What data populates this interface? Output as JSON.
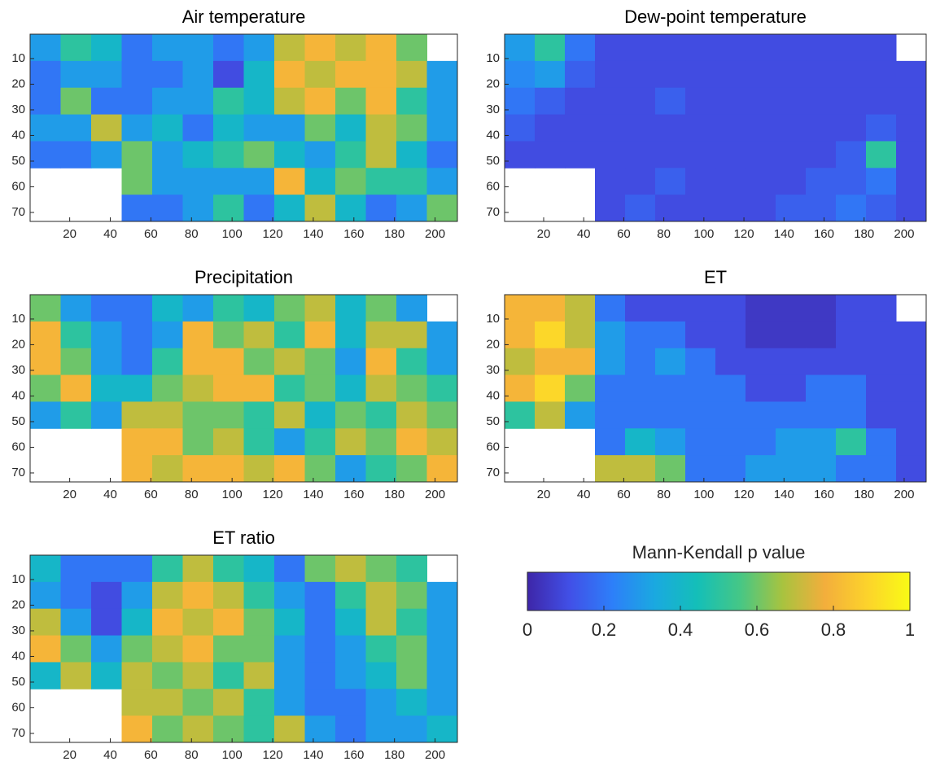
{
  "chart_data": [
    {
      "type": "heatmap",
      "title": "Air temperature",
      "xlim": [
        0.5,
        211
      ],
      "ylim": [
        0.5,
        73.5
      ],
      "y_reversed": true,
      "xticks": [
        20,
        40,
        60,
        80,
        100,
        120,
        140,
        160,
        180,
        200
      ],
      "yticks": [
        10,
        20,
        30,
        40,
        50,
        60,
        70
      ],
      "z": [
        [
          0.3,
          0.5,
          0.4,
          0.2,
          0.3,
          0.3,
          0.2,
          0.3,
          0.7,
          0.8,
          0.7,
          0.8,
          0.6,
          null
        ],
        [
          0.2,
          0.3,
          0.3,
          0.2,
          0.2,
          0.3,
          0.1,
          0.4,
          0.8,
          0.7,
          0.8,
          0.8,
          0.7,
          0.3
        ],
        [
          0.2,
          0.6,
          0.2,
          0.2,
          0.3,
          0.3,
          0.5,
          0.4,
          0.7,
          0.8,
          0.6,
          0.8,
          0.5,
          0.3
        ],
        [
          0.3,
          0.3,
          0.7,
          0.3,
          0.4,
          0.2,
          0.4,
          0.3,
          0.3,
          0.6,
          0.4,
          0.7,
          0.6,
          0.3
        ],
        [
          0.2,
          0.2,
          0.3,
          0.6,
          0.3,
          0.4,
          0.5,
          0.6,
          0.4,
          0.3,
          0.5,
          0.7,
          0.4,
          0.2
        ],
        [
          null,
          null,
          null,
          0.6,
          0.3,
          0.3,
          0.3,
          0.3,
          0.8,
          0.4,
          0.6,
          0.5,
          0.5,
          0.3
        ],
        [
          null,
          null,
          null,
          0.2,
          0.2,
          0.3,
          0.5,
          0.2,
          0.4,
          0.7,
          0.4,
          0.2,
          0.3,
          0.6
        ]
      ]
    },
    {
      "type": "heatmap",
      "title": "Dew-point temperature",
      "xlim": [
        0.5,
        211
      ],
      "ylim": [
        0.5,
        73.5
      ],
      "y_reversed": true,
      "xticks": [
        20,
        40,
        60,
        80,
        100,
        120,
        140,
        160,
        180,
        200
      ],
      "yticks": [
        10,
        20,
        30,
        40,
        50,
        60,
        70
      ],
      "z": [
        [
          0.3,
          0.5,
          0.2,
          0.1,
          0.1,
          0.1,
          0.1,
          0.1,
          0.1,
          0.1,
          0.1,
          0.1,
          0.1,
          null
        ],
        [
          0.25,
          0.3,
          0.15,
          0.1,
          0.1,
          0.1,
          0.1,
          0.1,
          0.1,
          0.1,
          0.1,
          0.1,
          0.1,
          0.1
        ],
        [
          0.2,
          0.15,
          0.1,
          0.1,
          0.1,
          0.15,
          0.1,
          0.1,
          0.1,
          0.1,
          0.1,
          0.1,
          0.1,
          0.1
        ],
        [
          0.15,
          0.1,
          0.1,
          0.1,
          0.1,
          0.1,
          0.1,
          0.1,
          0.1,
          0.1,
          0.1,
          0.1,
          0.15,
          0.1
        ],
        [
          0.1,
          0.1,
          0.1,
          0.1,
          0.1,
          0.1,
          0.1,
          0.1,
          0.1,
          0.1,
          0.1,
          0.15,
          0.5,
          0.1
        ],
        [
          null,
          null,
          null,
          0.1,
          0.1,
          0.15,
          0.1,
          0.1,
          0.1,
          0.1,
          0.15,
          0.15,
          0.2,
          0.1
        ],
        [
          null,
          null,
          null,
          0.1,
          0.15,
          0.1,
          0.1,
          0.1,
          0.1,
          0.15,
          0.15,
          0.2,
          0.15,
          0.1
        ]
      ]
    },
    {
      "type": "heatmap",
      "title": "Precipitation",
      "xlim": [
        0.5,
        211
      ],
      "ylim": [
        0.5,
        73.5
      ],
      "y_reversed": true,
      "xticks": [
        20,
        40,
        60,
        80,
        100,
        120,
        140,
        160,
        180,
        200
      ],
      "yticks": [
        10,
        20,
        30,
        40,
        50,
        60,
        70
      ],
      "z": [
        [
          0.6,
          0.3,
          0.2,
          0.2,
          0.4,
          0.3,
          0.5,
          0.4,
          0.6,
          0.7,
          0.4,
          0.6,
          0.3,
          null
        ],
        [
          0.8,
          0.5,
          0.3,
          0.2,
          0.3,
          0.8,
          0.6,
          0.7,
          0.5,
          0.8,
          0.4,
          0.7,
          0.7,
          0.3
        ],
        [
          0.8,
          0.6,
          0.3,
          0.2,
          0.5,
          0.8,
          0.8,
          0.6,
          0.7,
          0.6,
          0.3,
          0.8,
          0.5,
          0.3
        ],
        [
          0.6,
          0.8,
          0.4,
          0.4,
          0.6,
          0.7,
          0.8,
          0.8,
          0.5,
          0.6,
          0.4,
          0.7,
          0.6,
          0.5
        ],
        [
          0.3,
          0.5,
          0.3,
          0.7,
          0.7,
          0.6,
          0.6,
          0.5,
          0.7,
          0.4,
          0.6,
          0.5,
          0.7,
          0.6
        ],
        [
          null,
          null,
          null,
          0.8,
          0.8,
          0.6,
          0.7,
          0.5,
          0.3,
          0.5,
          0.7,
          0.6,
          0.8,
          0.7
        ],
        [
          null,
          null,
          null,
          0.8,
          0.7,
          0.8,
          0.8,
          0.7,
          0.8,
          0.6,
          0.3,
          0.5,
          0.6,
          0.8
        ]
      ]
    },
    {
      "type": "heatmap",
      "title": "ET",
      "xlim": [
        0.5,
        211
      ],
      "ylim": [
        0.5,
        73.5
      ],
      "y_reversed": true,
      "xticks": [
        20,
        40,
        60,
        80,
        100,
        120,
        140,
        160,
        180,
        200
      ],
      "yticks": [
        10,
        20,
        30,
        40,
        50,
        60,
        70
      ],
      "z": [
        [
          0.8,
          0.8,
          0.7,
          0.2,
          0.1,
          0.1,
          0.1,
          0.1,
          0.05,
          0.05,
          0.05,
          0.1,
          0.1,
          null
        ],
        [
          0.8,
          0.9,
          0.7,
          0.3,
          0.2,
          0.2,
          0.1,
          0.1,
          0.05,
          0.05,
          0.05,
          0.1,
          0.1,
          0.1
        ],
        [
          0.7,
          0.8,
          0.8,
          0.3,
          0.2,
          0.3,
          0.2,
          0.1,
          0.1,
          0.1,
          0.1,
          0.1,
          0.1,
          0.1
        ],
        [
          0.8,
          0.9,
          0.6,
          0.2,
          0.2,
          0.2,
          0.2,
          0.2,
          0.1,
          0.1,
          0.2,
          0.2,
          0.1,
          0.1
        ],
        [
          0.5,
          0.7,
          0.3,
          0.2,
          0.2,
          0.2,
          0.2,
          0.2,
          0.2,
          0.2,
          0.2,
          0.2,
          0.1,
          0.1
        ],
        [
          null,
          null,
          null,
          0.2,
          0.4,
          0.3,
          0.2,
          0.2,
          0.2,
          0.3,
          0.3,
          0.5,
          0.2,
          0.1
        ],
        [
          null,
          null,
          null,
          0.7,
          0.7,
          0.6,
          0.2,
          0.2,
          0.3,
          0.3,
          0.3,
          0.2,
          0.2,
          0.1
        ]
      ]
    },
    {
      "type": "heatmap",
      "title": "ET ratio",
      "xlim": [
        0.5,
        211
      ],
      "ylim": [
        0.5,
        73.5
      ],
      "y_reversed": true,
      "xticks": [
        20,
        40,
        60,
        80,
        100,
        120,
        140,
        160,
        180,
        200
      ],
      "yticks": [
        10,
        20,
        30,
        40,
        50,
        60,
        70
      ],
      "z": [
        [
          0.4,
          0.2,
          0.2,
          0.2,
          0.5,
          0.7,
          0.5,
          0.4,
          0.2,
          0.6,
          0.7,
          0.6,
          0.5,
          null
        ],
        [
          0.3,
          0.2,
          0.1,
          0.3,
          0.7,
          0.8,
          0.7,
          0.5,
          0.3,
          0.2,
          0.5,
          0.7,
          0.6,
          0.3
        ],
        [
          0.7,
          0.3,
          0.1,
          0.4,
          0.8,
          0.7,
          0.8,
          0.6,
          0.4,
          0.2,
          0.4,
          0.7,
          0.5,
          0.3
        ],
        [
          0.8,
          0.6,
          0.3,
          0.6,
          0.7,
          0.8,
          0.6,
          0.6,
          0.3,
          0.2,
          0.3,
          0.5,
          0.6,
          0.3
        ],
        [
          0.4,
          0.7,
          0.4,
          0.7,
          0.6,
          0.7,
          0.5,
          0.7,
          0.3,
          0.2,
          0.3,
          0.4,
          0.6,
          0.3
        ],
        [
          null,
          null,
          null,
          0.7,
          0.7,
          0.6,
          0.7,
          0.5,
          0.3,
          0.2,
          0.2,
          0.3,
          0.4,
          0.3
        ],
        [
          null,
          null,
          null,
          0.8,
          0.6,
          0.7,
          0.6,
          0.5,
          0.7,
          0.3,
          0.2,
          0.3,
          0.3,
          0.4
        ]
      ]
    }
  ],
  "colorbar": {
    "label": "Mann-Kendall p value",
    "clim": [
      0,
      1
    ],
    "ticks": [
      0,
      0.2,
      0.4,
      0.6,
      0.8,
      1
    ],
    "colormap": [
      "#3e26a8",
      "#4150e7",
      "#2d7ff9",
      "#1aa9e0",
      "#14bfb8",
      "#45c786",
      "#a8c33f",
      "#f3ae3c",
      "#fcd32b",
      "#f9fb15"
    ]
  }
}
